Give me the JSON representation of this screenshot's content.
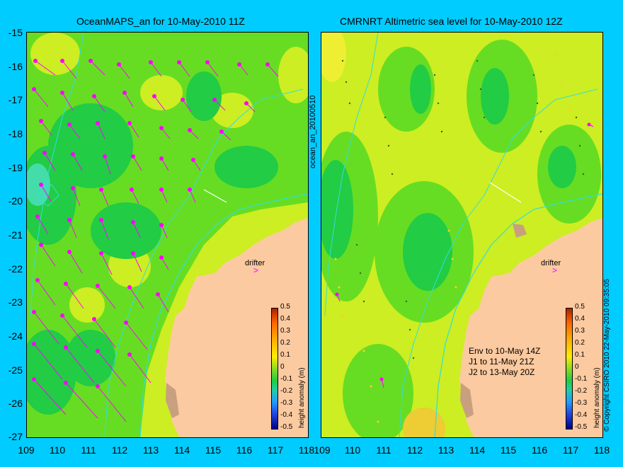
{
  "left_title": "OceanMAPS_an for 10-May-2010 11Z",
  "right_title": "CMRNRT Altimetric sea level  for 10-May-2010 12Z",
  "y_ticks": [
    "-15",
    "-16",
    "-17",
    "-18",
    "-19",
    "-20",
    "-21",
    "-22",
    "-23",
    "-24",
    "-25",
    "-26",
    "-27"
  ],
  "x_ticks": [
    "109",
    "110",
    "111",
    "112",
    "113",
    "114",
    "115",
    "116",
    "117",
    "118"
  ],
  "vertical_label": "ocean_an_20100510",
  "copyright": "© Copyright CSIRO 2010   22-May-2010 09:35:05",
  "drifter_label": "drifter",
  "colorbar": {
    "ticks": [
      "0.5",
      "0.4",
      "0.3",
      "0.2",
      "0.1",
      "0",
      "-0.1",
      "-0.2",
      "-0.3",
      "-0.4",
      "-0.5"
    ],
    "title": "height anomaly (m)"
  },
  "legend": {
    "line1": "Env to 10-May 14Z",
    "line2": "J1 to 11-May 21Z",
    "line3": "J2 to 13-May 20Z"
  },
  "colors": {
    "background": "#00ccff",
    "land": "#fccaa0",
    "ocean_mid": "#66dd22",
    "ocean_high": "#ccee22",
    "ocean_low": "#22cc44",
    "contour": "#33dddd",
    "vector": "#ff00ff"
  }
}
